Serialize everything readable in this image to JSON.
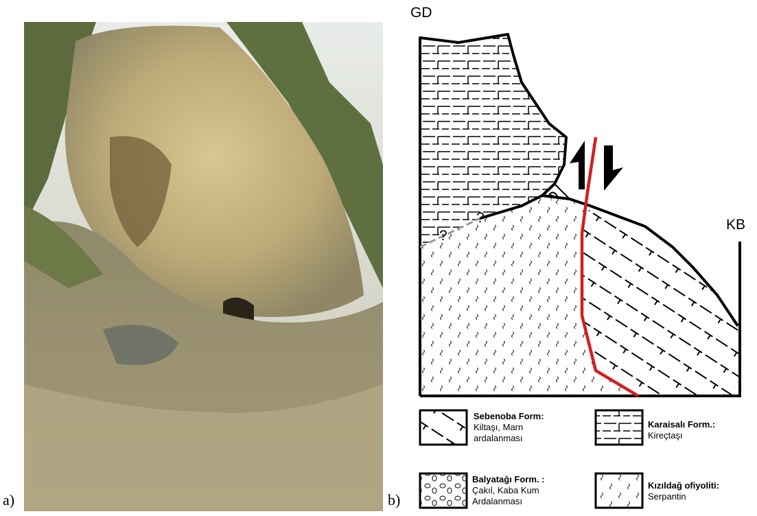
{
  "panels": {
    "a": {
      "label": "a)"
    },
    "b": {
      "label": "b)"
    }
  },
  "diagram": {
    "left_label": "GD",
    "right_label": "KB",
    "question_marks": [
      "?",
      "?",
      "?"
    ]
  },
  "legend": [
    {
      "name": "Sebenoba Form:",
      "description": [
        "Kiltaşı, Marn",
        "ardalanması"
      ]
    },
    {
      "name": "Karaisalı Form.:",
      "description": [
        "Kireçtaşı"
      ]
    },
    {
      "name": "Balyatağı Form. :",
      "description": [
        "Çakıl, Kaba Kum",
        "Ardalanması"
      ]
    },
    {
      "name": "Kızıldağ ofiyoliti:",
      "description": [
        "Serpantin"
      ]
    }
  ]
}
